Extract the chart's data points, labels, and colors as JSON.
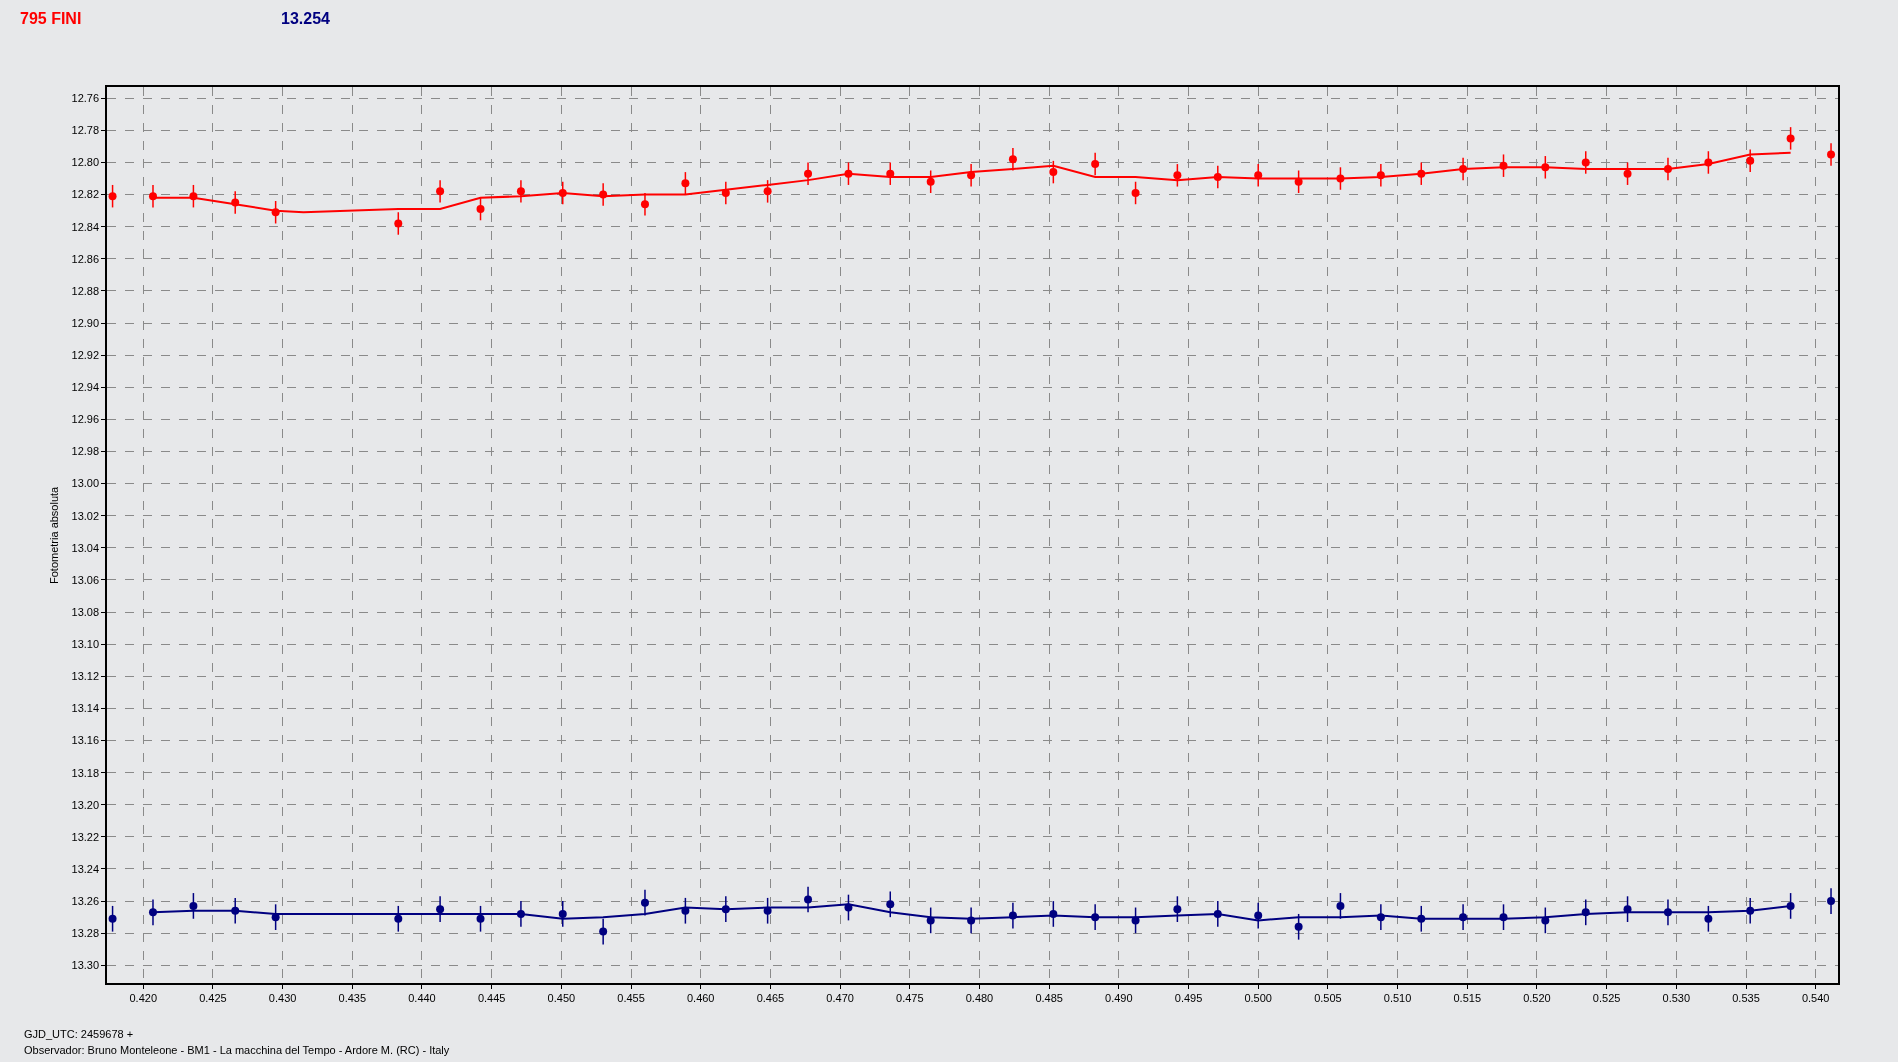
{
  "chart_data": {
    "type": "scatter",
    "xlabel": "GJD_UTC: 2459678 +",
    "ylabel": "Fotometria absoluta",
    "annotations": [
      "Observador: Bruno Monteleone - BM1 - La macchina del Tempo - Ardore M. (RC) - Italy"
    ],
    "xlim": [
      0.4174,
      0.5416
    ],
    "xticks": [
      {
        "value": 0.42,
        "label": "0.420"
      },
      0.425,
      {
        "value": 0.43,
        "label": "0.430"
      },
      0.435,
      {
        "value": 0.44,
        "label": "0.440"
      },
      0.445,
      {
        "value": 0.45,
        "label": "0.450"
      },
      0.455,
      {
        "value": 0.46,
        "label": "0.460"
      },
      0.465,
      {
        "value": 0.47,
        "label": "0.470"
      },
      0.475,
      {
        "value": 0.48,
        "label": "0.480"
      },
      0.485,
      {
        "value": 0.49,
        "label": "0.490"
      },
      0.495,
      {
        "value": 0.5,
        "label": "0.500"
      },
      0.505,
      {
        "value": 0.51,
        "label": "0.510"
      },
      0.515,
      {
        "value": 0.52,
        "label": "0.520"
      },
      0.525,
      {
        "value": 0.53,
        "label": "0.530"
      },
      0.535,
      {
        "value": 0.54,
        "label": "0.540"
      }
    ],
    "ylim": [
      13.311,
      12.753
    ],
    "yticks": [
      12.76,
      12.78,
      {
        "value": 12.8,
        "label": "12.80"
      },
      12.82,
      12.84,
      12.86,
      12.88,
      {
        "value": 12.9,
        "label": "12.90"
      },
      12.92,
      12.94,
      12.96,
      12.98,
      {
        "value": 13.0,
        "label": "13.00"
      },
      13.02,
      13.04,
      13.06,
      13.08,
      {
        "value": 13.1,
        "label": "13.10"
      },
      13.12,
      13.14,
      13.16,
      13.18,
      {
        "value": 13.2,
        "label": "13.20"
      },
      13.22,
      13.24,
      13.26,
      13.28,
      {
        "value": 13.3,
        "label": "13.30"
      }
    ],
    "grid": true,
    "marker": "circle",
    "series": [
      {
        "name": "795 FINI",
        "color": "#ff0000",
        "x": [
          0.4178,
          0.4207,
          0.4236,
          0.4266,
          0.4295,
          0.4383,
          0.4413,
          0.4442,
          0.4471,
          0.4501,
          0.453,
          0.456,
          0.4589,
          0.4618,
          0.4648,
          0.4677,
          0.4706,
          0.4736,
          0.4765,
          0.4794,
          0.4824,
          0.4853,
          0.4883,
          0.4912,
          0.4942,
          0.4971,
          0.5,
          0.5029,
          0.5059,
          0.5088,
          0.5117,
          0.5147,
          0.5176,
          0.5206,
          0.5235,
          0.5265,
          0.5294,
          0.5323,
          0.5353,
          0.5382,
          0.5411
        ],
        "values": [
          12.821,
          12.821,
          12.821,
          12.825,
          12.831,
          12.838,
          12.818,
          12.829,
          12.818,
          12.819,
          12.82,
          12.826,
          12.813,
          12.819,
          12.818,
          12.807,
          12.807,
          12.807,
          12.812,
          12.808,
          12.798,
          12.806,
          12.801,
          12.819,
          12.808,
          12.809,
          12.808,
          12.812,
          12.81,
          12.808,
          12.807,
          12.804,
          12.802,
          12.803,
          12.8,
          12.807,
          12.804,
          12.8,
          12.799,
          12.785,
          12.795
        ],
        "errors": [
          0.007,
          0.007,
          0.007,
          0.007,
          0.007,
          0.007,
          0.007,
          0.007,
          0.007,
          0.007,
          0.007,
          0.007,
          0.007,
          0.007,
          0.007,
          0.007,
          0.007,
          0.007,
          0.007,
          0.007,
          0.007,
          0.007,
          0.007,
          0.007,
          0.007,
          0.007,
          0.007,
          0.007,
          0.007,
          0.007,
          0.007,
          0.007,
          0.007,
          0.007,
          0.007,
          0.007,
          0.007,
          0.007,
          0.007,
          0.007,
          0.007
        ]
      },
      {
        "type": "line",
        "marker": "none",
        "color": "#ff0000",
        "x": [
          0.4207,
          0.4236,
          0.4266,
          0.4295,
          0.4315,
          0.4383,
          0.4413,
          0.4442,
          0.4471,
          0.4501,
          0.453,
          0.456,
          0.4589,
          0.4618,
          0.4648,
          0.4677,
          0.4706,
          0.4736,
          0.4765,
          0.4794,
          0.4824,
          0.4853,
          0.4883,
          0.4912,
          0.4942,
          0.4971,
          0.5,
          0.5029,
          0.5059,
          0.5088,
          0.5117,
          0.5147,
          0.5176,
          0.5206,
          0.5235,
          0.5265,
          0.5294,
          0.5323,
          0.5353,
          0.5382
        ],
        "values": [
          12.822,
          12.822,
          12.826,
          12.83,
          12.831,
          12.829,
          12.829,
          12.822,
          12.821,
          12.819,
          12.821,
          12.82,
          12.82,
          12.817,
          12.814,
          12.811,
          12.807,
          12.809,
          12.809,
          12.806,
          12.804,
          12.802,
          12.809,
          12.809,
          12.811,
          12.809,
          12.81,
          12.81,
          12.81,
          12.809,
          12.807,
          12.804,
          12.803,
          12.803,
          12.804,
          12.804,
          12.804,
          12.801,
          12.795,
          12.794
        ]
      },
      {
        "name": "13.254",
        "color": "#000080",
        "x": [
          0.4178,
          0.4207,
          0.4236,
          0.4266,
          0.4295,
          0.4383,
          0.4413,
          0.4442,
          0.4471,
          0.4501,
          0.453,
          0.456,
          0.4589,
          0.4618,
          0.4648,
          0.4677,
          0.4706,
          0.4736,
          0.4765,
          0.4794,
          0.4824,
          0.4853,
          0.4883,
          0.4912,
          0.4942,
          0.4971,
          0.5,
          0.5029,
          0.5059,
          0.5088,
          0.5117,
          0.5147,
          0.5176,
          0.5206,
          0.5235,
          0.5265,
          0.5294,
          0.5323,
          0.5353,
          0.5382,
          0.5411
        ],
        "values": [
          13.271,
          13.267,
          13.263,
          13.266,
          13.27,
          13.271,
          13.265,
          13.271,
          13.268,
          13.268,
          13.279,
          13.261,
          13.266,
          13.265,
          13.266,
          13.259,
          13.264,
          13.262,
          13.272,
          13.272,
          13.269,
          13.268,
          13.27,
          13.272,
          13.265,
          13.268,
          13.269,
          13.276,
          13.263,
          13.27,
          13.271,
          13.27,
          13.27,
          13.272,
          13.267,
          13.265,
          13.267,
          13.271,
          13.266,
          13.263,
          13.26
        ],
        "errors": [
          0.008,
          0.008,
          0.008,
          0.008,
          0.008,
          0.008,
          0.008,
          0.008,
          0.008,
          0.008,
          0.008,
          0.008,
          0.008,
          0.008,
          0.008,
          0.008,
          0.008,
          0.008,
          0.008,
          0.008,
          0.008,
          0.008,
          0.008,
          0.008,
          0.008,
          0.008,
          0.008,
          0.008,
          0.008,
          0.008,
          0.008,
          0.008,
          0.008,
          0.008,
          0.008,
          0.008,
          0.008,
          0.008,
          0.008,
          0.008,
          0.008
        ]
      },
      {
        "type": "line",
        "marker": "none",
        "color": "#000080",
        "x": [
          0.4207,
          0.4236,
          0.4266,
          0.4295,
          0.4315,
          0.4383,
          0.4413,
          0.4442,
          0.4471,
          0.4501,
          0.453,
          0.456,
          0.4589,
          0.4618,
          0.4648,
          0.4677,
          0.4706,
          0.4736,
          0.4765,
          0.4794,
          0.4824,
          0.4853,
          0.4883,
          0.4912,
          0.4942,
          0.4971,
          0.5,
          0.5029,
          0.5059,
          0.5088,
          0.5117,
          0.5147,
          0.5176,
          0.5206,
          0.5235,
          0.5265,
          0.5294,
          0.5323,
          0.5353,
          0.5382
        ],
        "values": [
          13.267,
          13.266,
          13.266,
          13.268,
          13.268,
          13.268,
          13.268,
          13.268,
          13.268,
          13.271,
          13.27,
          13.268,
          13.264,
          13.265,
          13.264,
          13.264,
          13.262,
          13.267,
          13.27,
          13.271,
          13.27,
          13.269,
          13.27,
          13.27,
          13.269,
          13.268,
          13.272,
          13.27,
          13.27,
          13.269,
          13.271,
          13.271,
          13.271,
          13.27,
          13.268,
          13.267,
          13.267,
          13.267,
          13.266,
          13.263
        ]
      }
    ]
  }
}
